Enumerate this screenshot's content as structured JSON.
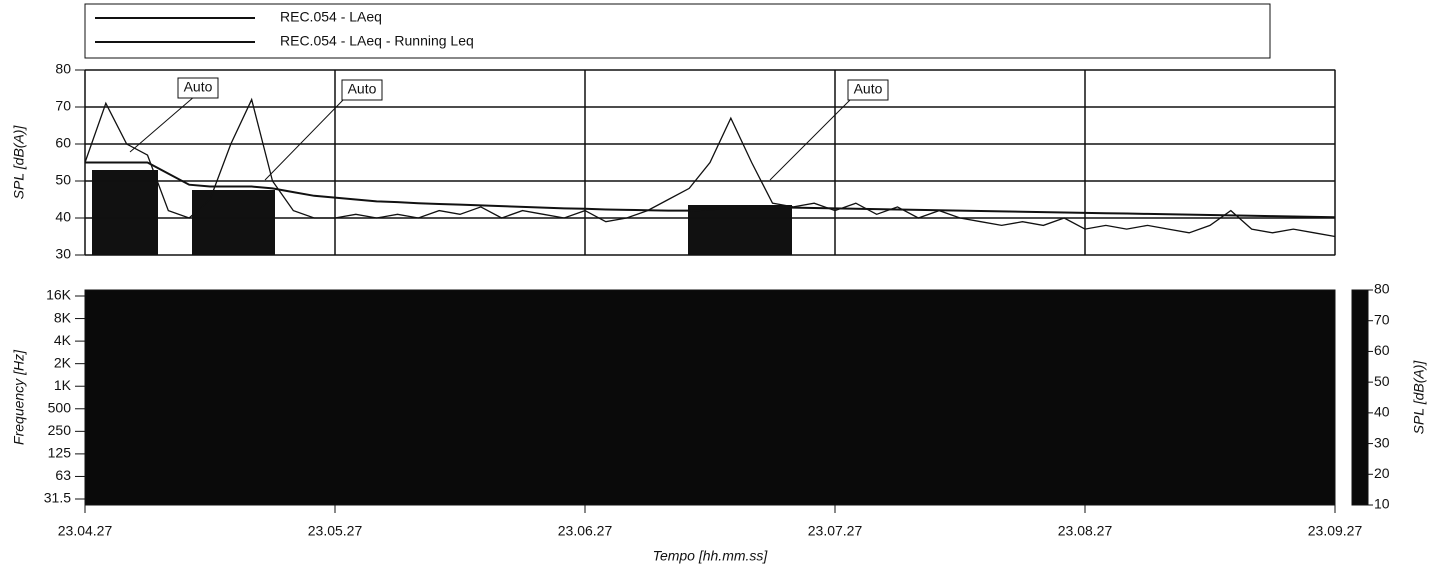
{
  "chart_data": [
    {
      "type": "line",
      "ylabel": "SPL [dB(A)]",
      "x": [
        83067,
        83072,
        83077,
        83082,
        83087,
        83092,
        83097,
        83102,
        83107,
        83112,
        83117,
        83122,
        83127,
        83132,
        83137,
        83142,
        83147,
        83152,
        83157,
        83162,
        83167,
        83172,
        83177,
        83182,
        83187,
        83192,
        83197,
        83202,
        83207,
        83212,
        83217,
        83222,
        83227,
        83232,
        83237,
        83242,
        83247,
        83252,
        83257,
        83262,
        83267,
        83272,
        83277,
        83282,
        83287,
        83292,
        83297,
        83302,
        83307,
        83312,
        83317,
        83322,
        83327,
        83332,
        83337,
        83342,
        83347,
        83352,
        83357,
        83362,
        83367
      ],
      "series": [
        {
          "name": "REC.054 - LAeq",
          "color": "#111111",
          "values": [
            55,
            71,
            60,
            57,
            42,
            40,
            45,
            60,
            72,
            50,
            42,
            40,
            40,
            41,
            40,
            41,
            40,
            42,
            41,
            43,
            40,
            42,
            41,
            40,
            42,
            39,
            40,
            42,
            45,
            48,
            55,
            67,
            55,
            44,
            43,
            44,
            42,
            44,
            41,
            43,
            40,
            42,
            40,
            39,
            38,
            39,
            38,
            40,
            37,
            38,
            37,
            38,
            37,
            36,
            38,
            42,
            37,
            36,
            37,
            36,
            35
          ]
        },
        {
          "name": "REC.054 - LAeq - Running Leq",
          "color": "#111111",
          "values": [
            55,
            55,
            55,
            55,
            52,
            49,
            48.5,
            48.5,
            48.5,
            48,
            47,
            46,
            45.5,
            45,
            44.5,
            44.3,
            44,
            43.8,
            43.6,
            43.4,
            43.2,
            43,
            42.8,
            42.6,
            42.5,
            42.3,
            42.2,
            42.1,
            42,
            42,
            42.3,
            42.8,
            43,
            42.9,
            42.8,
            42.7,
            42.6,
            42.5,
            42.4,
            42.3,
            42.2,
            42.1,
            42,
            41.9,
            41.8,
            41.7,
            41.6,
            41.5,
            41.4,
            41.3,
            41.2,
            41.1,
            41,
            40.9,
            40.8,
            40.7,
            40.6,
            40.5,
            40.4,
            40.3,
            40.2
          ]
        }
      ],
      "annotations": [
        "Auto",
        "Auto",
        "Auto"
      ],
      "xlim": [
        83067,
        83367
      ],
      "xticks": [
        {
          "value": 83067,
          "label": "23.04.27"
        },
        {
          "value": 83127,
          "label": "23.05.27"
        },
        {
          "value": 83187,
          "label": "23.06.27"
        },
        {
          "value": 83247,
          "label": "23.07.27"
        },
        {
          "value": 83307,
          "label": "23.08.27"
        },
        {
          "value": 83367,
          "label": "23.09.27"
        }
      ],
      "ylim": [
        30,
        80
      ],
      "yticks": [
        30,
        40,
        50,
        60,
        70,
        80
      ],
      "grid": true
    },
    {
      "type": "spectrogram",
      "xlabel": "Tempo [hh.mm.ss]",
      "ylabel": "Frequency [Hz]",
      "categories": [
        "16K",
        "8K",
        "4K",
        "2K",
        "1K",
        "500",
        "250",
        "125",
        "63",
        "31.5"
      ],
      "zlabel": "SPL [dB(A)]",
      "zlim": [
        10,
        80
      ],
      "zticks": [
        10,
        20,
        30,
        40,
        50,
        60,
        70,
        80
      ]
    }
  ]
}
